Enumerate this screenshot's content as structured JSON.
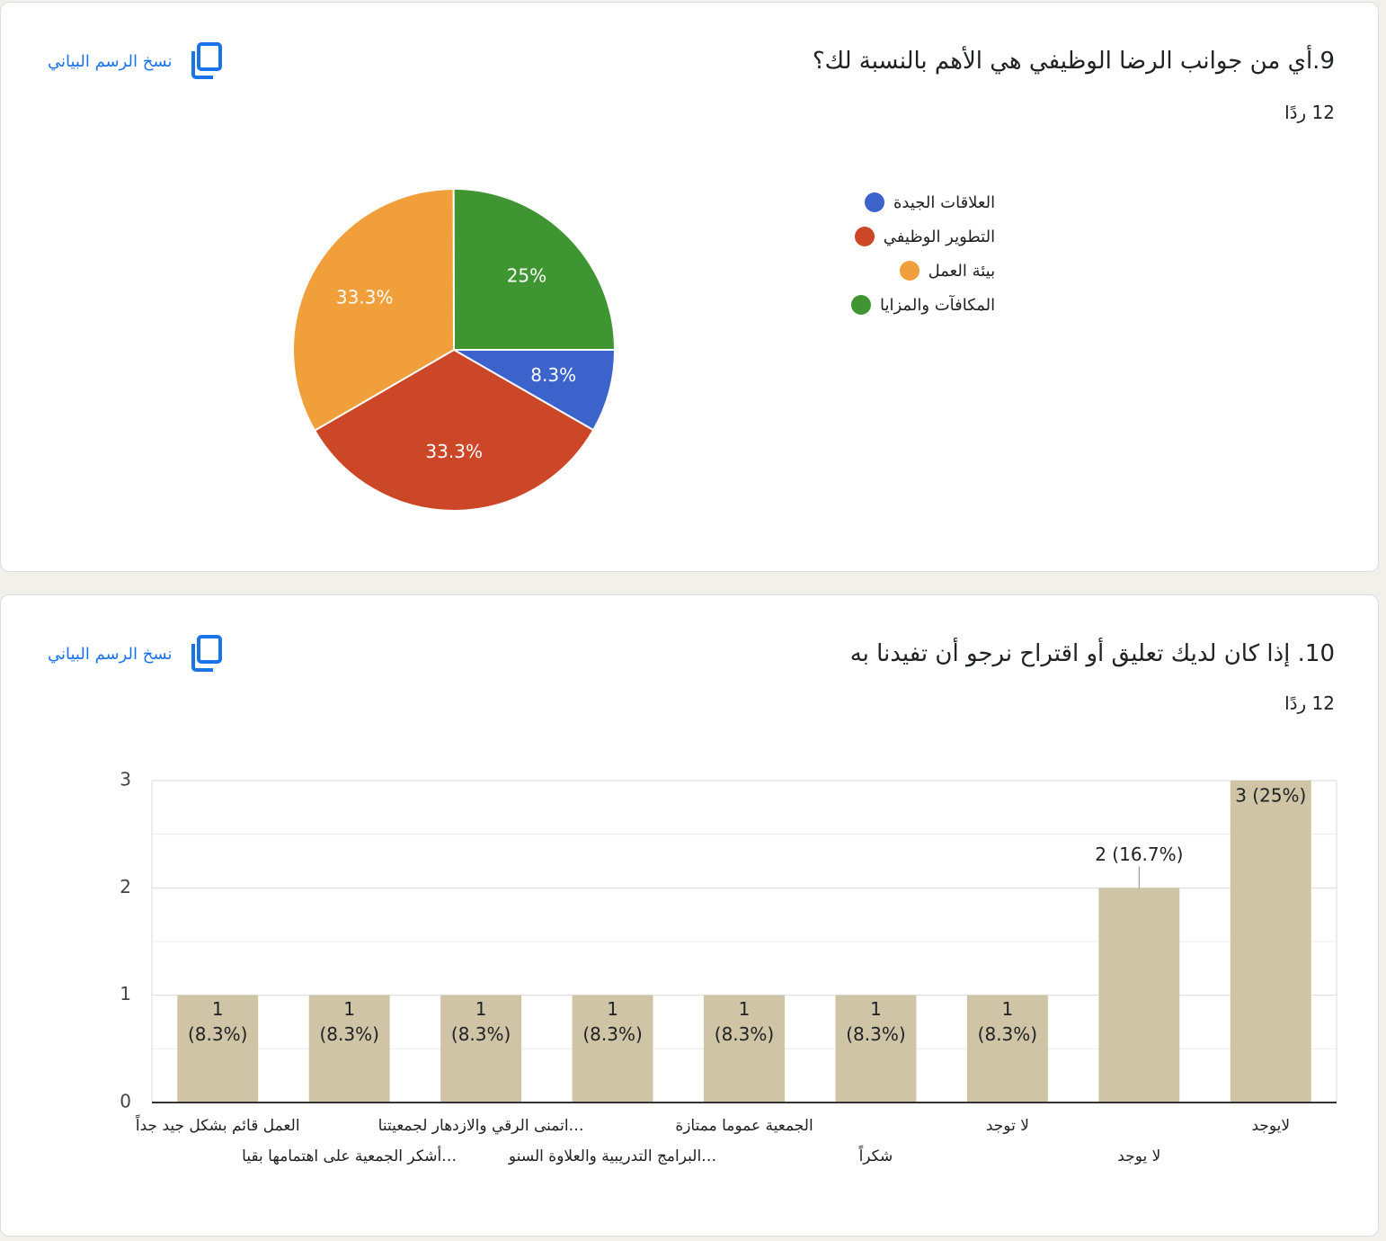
{
  "copy_chart_label": "نسخ الرسم البياني",
  "q9": {
    "title": "9.أي من جوانب الرضا الوظيفي هي الأهم بالنسبة لك؟",
    "responses": "12 ردًا",
    "chart_data": {
      "type": "pie",
      "slices": [
        {
          "label": "العلاقات الجيدة",
          "value": 8.3,
          "pct_label": "8.3%",
          "color": "#3c63cc"
        },
        {
          "label": "التطوير الوظيفي",
          "value": 33.3,
          "pct_label": "33.3%",
          "color": "#cc4628"
        },
        {
          "label": "بيئة العمل",
          "value": 33.3,
          "pct_label": "33.3%",
          "color": "#f09f3b"
        },
        {
          "label": "المكافآت والمزايا",
          "value": 25,
          "pct_label": "25%",
          "color": "#3f9532"
        }
      ],
      "legend_position": "right"
    }
  },
  "q10": {
    "title": "10. إذا كان لديك تعليق أو اقتراح نرجو أن تفيدنا به",
    "responses": "12 ردًا",
    "chart_data": {
      "type": "bar",
      "categories": [
        "لايوجد",
        "لا يوجد",
        "لا توجد",
        "شكراً",
        "الجمعية عموما ممتازة",
        "…البرامج التدريبية والعلاوة السنو",
        "…اتمنى الرقي والازدهار لجمعيتنا",
        "…أشكر الجمعية على اهتمامها بقيا",
        "العمل قائم بشكل جيد جداً"
      ],
      "values": [
        3,
        2,
        1,
        1,
        1,
        1,
        1,
        1,
        1
      ],
      "value_labels": [
        "3 (25%)",
        "2 (16.7%)",
        "1 (8.3%)",
        "1 (8.3%)",
        "1 (8.3%)",
        "1 (8.3%)",
        "1 (8.3%)",
        "1 (8.3%)",
        "1 (8.3%)"
      ],
      "y_ticks": [
        0,
        1,
        2,
        3
      ],
      "ylim": [
        0,
        3
      ],
      "bar_color": "#cfc5a6",
      "grid": true
    }
  }
}
